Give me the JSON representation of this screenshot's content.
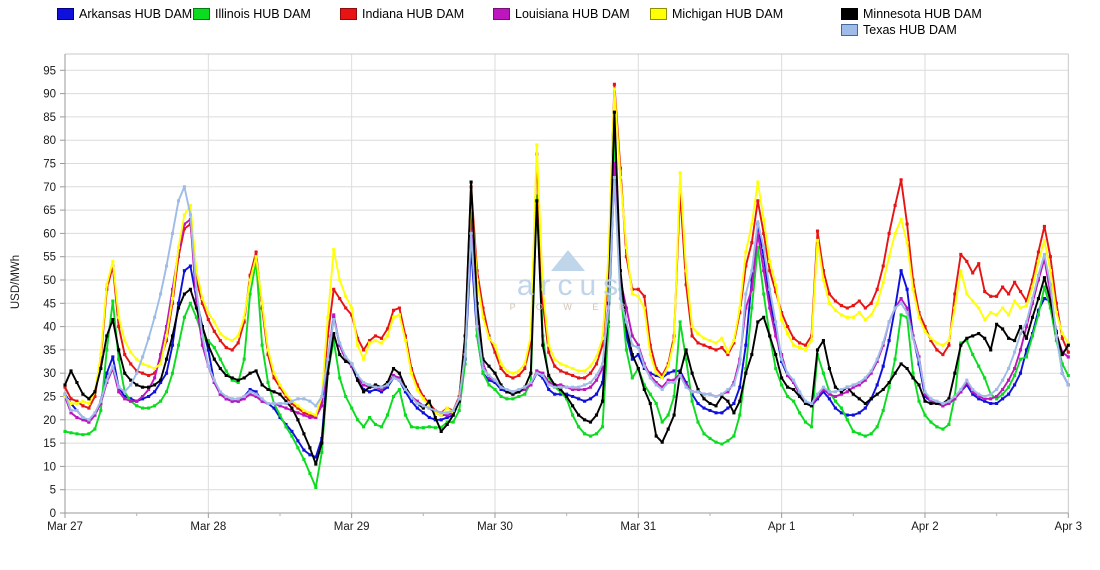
{
  "chart_data": {
    "type": "line",
    "title": "",
    "ylabel": "USD/MWh",
    "ylim": [
      0,
      95
    ],
    "ytick_step": 5,
    "grid": true,
    "legend_position": "top",
    "x_mode": "hourly",
    "points_per_day": 24,
    "day_labels": [
      "Mar 27",
      "Mar 28",
      "Mar 29",
      "Mar 30",
      "Mar 31",
      "Apr 1",
      "Apr 2",
      "Apr 3"
    ],
    "watermark": {
      "text": "arcus",
      "subtext": "P O W E R"
    },
    "series": [
      {
        "name": "Arkansas HUB DAM",
        "color": "#1010dd",
        "border": "#000080",
        "values": [
          25.5,
          23.5,
          22,
          20.5,
          19.5,
          21,
          24,
          30,
          33.5,
          27,
          25,
          24.5,
          24,
          24.5,
          25,
          26,
          28,
          30,
          36,
          45,
          52,
          53,
          46,
          40,
          35,
          28,
          25.5,
          24.5,
          24,
          24,
          25,
          26.5,
          26,
          24,
          23.5,
          22.5,
          20.5,
          19,
          17.5,
          15.5,
          13.5,
          12.5,
          12,
          16,
          32,
          42,
          36,
          33,
          31.5,
          28.5,
          26.5,
          26,
          26.5,
          26,
          27,
          29,
          28.5,
          26,
          24,
          22.5,
          21.5,
          20.5,
          20,
          20,
          20.5,
          21,
          24,
          33,
          57,
          38,
          30,
          28.5,
          28,
          26.5,
          26,
          25.5,
          26,
          26.5,
          27.5,
          30,
          29,
          26.5,
          25.5,
          25.5,
          25.5,
          25,
          24.5,
          24,
          24.5,
          25.5,
          28,
          41,
          73,
          48,
          38,
          33,
          34,
          31,
          30,
          29.5,
          29,
          30,
          30.5,
          30.5,
          28,
          25.5,
          23.5,
          22.5,
          22,
          21.5,
          21.5,
          22.5,
          23.5,
          27,
          36,
          50,
          62,
          55,
          46,
          39,
          32.5,
          29.5,
          28,
          25.5,
          23.5,
          23,
          24.5,
          26,
          24.5,
          22.5,
          21.5,
          21,
          21,
          21.5,
          22.5,
          24.5,
          27.5,
          31.5,
          37,
          44,
          52,
          48,
          38,
          32,
          25,
          24,
          23.5,
          23,
          23.5,
          24.5,
          26,
          27.5,
          25.5,
          24.5,
          24,
          23.5,
          23.5,
          24.5,
          25.5,
          27.5,
          30,
          35,
          38.5,
          43.5,
          46,
          45.5,
          39,
          30,
          27.5
        ]
      },
      {
        "name": "Illinois HUB DAM",
        "color": "#0bdc20",
        "border": "#007f0e",
        "values": [
          17.5,
          17.2,
          17,
          16.8,
          17,
          18,
          22,
          35,
          45.5,
          33,
          26,
          24,
          23,
          22.5,
          22.5,
          23,
          24,
          26,
          30,
          36,
          42,
          45,
          42,
          38,
          37,
          35.5,
          33,
          30.5,
          28.5,
          28,
          33,
          47,
          54,
          36,
          28,
          23.5,
          21,
          18.5,
          16.5,
          14,
          11.5,
          8.5,
          5.5,
          13,
          30,
          37,
          29,
          25,
          22.5,
          20,
          18.5,
          20.5,
          19,
          18.5,
          21,
          25,
          26.5,
          21,
          18.5,
          18.3,
          18.3,
          18.5,
          18.3,
          18.4,
          19.5,
          19.5,
          22,
          32,
          66,
          38,
          30,
          27.5,
          26.5,
          25,
          24.5,
          24.5,
          25,
          25.5,
          28,
          68,
          38,
          29,
          27,
          26,
          24.5,
          21,
          18.5,
          17,
          16.5,
          17,
          18.5,
          40,
          82,
          48,
          35,
          29,
          31,
          27.5,
          25.5,
          23.5,
          19.5,
          21,
          25,
          41,
          33,
          24,
          19.5,
          17,
          16,
          15.2,
          14.8,
          15.5,
          16.5,
          21,
          31,
          44,
          57,
          47,
          38,
          31,
          27.5,
          25,
          24,
          21.5,
          19.5,
          18.5,
          34,
          30,
          26,
          24,
          22.5,
          20,
          17.5,
          17,
          16.5,
          17,
          18.5,
          22,
          27,
          33,
          42.5,
          42,
          30,
          24,
          21,
          19.5,
          18.5,
          18,
          19,
          25,
          36.5,
          37,
          34,
          31.5,
          29,
          25.5,
          24.5,
          25.5,
          27,
          29.5,
          33,
          33.5,
          38,
          42.5,
          48.5,
          44,
          37,
          32,
          29.5
        ]
      },
      {
        "name": "Indiana HUB DAM",
        "color": "#e81313",
        "border": "#8f0a0a",
        "values": [
          27,
          24.5,
          24,
          23,
          22.5,
          25,
          33,
          48,
          53,
          40,
          34,
          32,
          30.5,
          30,
          29.5,
          30,
          33,
          37,
          45,
          55,
          61,
          62,
          50,
          45,
          41.5,
          39,
          37,
          35.5,
          35,
          36.5,
          41,
          51,
          56,
          44,
          34,
          29,
          27,
          25,
          23.5,
          22.5,
          21.5,
          21,
          20.5,
          24,
          38,
          48,
          46,
          44,
          42.5,
          37.5,
          35,
          37,
          38,
          37.5,
          39.5,
          43.5,
          44,
          38,
          31,
          27.5,
          25,
          23.5,
          22,
          21.5,
          22.5,
          22,
          25,
          38,
          70,
          52,
          44,
          38,
          34.5,
          31,
          29.5,
          29,
          29.5,
          31,
          36.5,
          77,
          45,
          34.5,
          31.5,
          30.5,
          30,
          29.5,
          29,
          29,
          30,
          32,
          36,
          53,
          92,
          74,
          55,
          48,
          48,
          46.5,
          36,
          31,
          29.5,
          32,
          38,
          69,
          49,
          38,
          36.5,
          36,
          35.5,
          35,
          35.5,
          34,
          36.5,
          43,
          53,
          58,
          67,
          60,
          52,
          47.5,
          43,
          40,
          37.5,
          36.5,
          36,
          38,
          60.5,
          52,
          47,
          45.5,
          44.5,
          44,
          44.5,
          45.5,
          44,
          45,
          48,
          53,
          60,
          66,
          71.5,
          62,
          50,
          43,
          40,
          37,
          35,
          34,
          36,
          47,
          55.5,
          54,
          51.5,
          53.5,
          47.5,
          46.5,
          46.5,
          48.5,
          47,
          49.5,
          47.5,
          45.5,
          50,
          56,
          61.5,
          55,
          45,
          37.5,
          34.5
        ]
      },
      {
        "name": "Louisiana HUB DAM",
        "color": "#be16be",
        "border": "#770e77",
        "values": [
          25,
          21.5,
          20.5,
          20,
          19.5,
          21,
          23.5,
          28,
          31,
          26,
          24.5,
          24,
          24,
          25,
          26.5,
          29,
          34,
          40,
          48,
          56,
          62,
          63,
          45,
          36,
          31.5,
          28,
          25.5,
          24.5,
          24,
          24,
          24.5,
          25.5,
          25,
          24,
          23.5,
          23.5,
          23,
          22.5,
          22,
          21.5,
          21,
          20.5,
          20.5,
          23,
          33,
          42.5,
          36,
          33,
          31.5,
          29,
          27.5,
          27,
          27,
          26.5,
          27.5,
          29.5,
          29,
          27,
          25,
          24,
          23,
          22.5,
          21.5,
          21,
          21,
          21.5,
          24,
          34,
          65,
          42,
          32,
          29,
          28.5,
          27,
          26.5,
          26,
          26,
          26.5,
          27.5,
          30.5,
          30,
          28,
          27.5,
          27.5,
          27,
          26.5,
          26.5,
          26.5,
          27,
          28.5,
          31,
          45,
          75,
          50,
          44,
          38,
          36,
          32,
          29.5,
          28,
          27,
          28.5,
          28.5,
          30,
          27.5,
          26,
          26,
          25.5,
          25.5,
          25,
          25.5,
          26,
          28,
          33,
          44,
          48,
          60,
          52,
          44,
          38,
          34,
          29.5,
          28,
          25.5,
          23.5,
          23,
          25,
          26.5,
          25.5,
          25,
          25.5,
          26,
          27,
          27.5,
          28.5,
          30,
          32.5,
          36,
          41,
          44,
          46,
          44,
          38,
          33.5,
          25.5,
          24,
          23.5,
          23,
          23.5,
          24.5,
          26,
          28,
          26,
          25,
          24.5,
          24.5,
          25,
          26.5,
          28.5,
          31,
          35,
          40,
          45,
          50,
          54.5,
          47,
          38.5,
          34.5,
          33.5
        ]
      },
      {
        "name": "Michigan HUB DAM",
        "color": "#ffff05",
        "border": "#8f8f00",
        "values": [
          25,
          23.5,
          23.5,
          24,
          23.5,
          26,
          34,
          49,
          54,
          42,
          37,
          34.5,
          33,
          32,
          31.5,
          31,
          32,
          38,
          46,
          57,
          64,
          66,
          52,
          46,
          43,
          41,
          38.5,
          37.5,
          37,
          38,
          42,
          50,
          55,
          45,
          35,
          30,
          27.5,
          25.5,
          24,
          23,
          22,
          21.5,
          21,
          25,
          42,
          56.5,
          50,
          46.5,
          44,
          36,
          33,
          36.5,
          37,
          36.5,
          38,
          42,
          42.5,
          37,
          30,
          26.5,
          24.5,
          23,
          21.5,
          21,
          22.5,
          21.5,
          24.5,
          37,
          68.5,
          50,
          42,
          37.5,
          36,
          32,
          30.5,
          30,
          30.5,
          32,
          38,
          79,
          48,
          36,
          33,
          32,
          31.5,
          31,
          30.5,
          30.5,
          31.5,
          33.5,
          37.5,
          55,
          91,
          72,
          57,
          47,
          46.5,
          44,
          34,
          30,
          29,
          31.5,
          37,
          73,
          52,
          40,
          38.5,
          37.5,
          37,
          36.5,
          37.5,
          34.5,
          37,
          44,
          56,
          62,
          71,
          63,
          54,
          49,
          41.5,
          38.5,
          36,
          35.5,
          35,
          37,
          58.5,
          50,
          45,
          43.5,
          42.5,
          42,
          42,
          43,
          41.5,
          42.5,
          45,
          49.5,
          55,
          60,
          63,
          58,
          48,
          42,
          39,
          37.5,
          36.5,
          36,
          37,
          44,
          52,
          47,
          45.5,
          44,
          41.5,
          43,
          42.5,
          44,
          42.5,
          45.5,
          44,
          44.5,
          48.5,
          54,
          58.5,
          52,
          43,
          38.5,
          36.5
        ]
      },
      {
        "name": "Minnesota HUB DAM",
        "color": "#000000",
        "border": "#000000",
        "values": [
          27.5,
          30.5,
          28,
          25.5,
          24.5,
          26,
          31,
          38,
          41.5,
          35,
          30,
          28.5,
          27.5,
          27,
          27,
          27.5,
          28.5,
          33,
          38,
          44,
          47,
          48,
          44,
          40,
          36,
          33,
          31,
          29.5,
          29,
          28.5,
          29,
          30,
          30.5,
          27.5,
          26.5,
          26,
          25.5,
          24,
          22.5,
          20,
          17,
          14,
          10.5,
          15,
          30,
          38.5,
          34,
          32.5,
          32,
          28.5,
          26,
          27,
          27.5,
          27,
          28,
          31,
          30,
          27,
          25,
          23.5,
          22.5,
          24,
          20.5,
          17.5,
          19,
          21,
          24,
          38,
          71,
          45,
          33,
          31.5,
          30,
          27.5,
          26,
          25.5,
          26,
          27,
          30,
          67,
          36,
          29.5,
          27.5,
          26.5,
          25,
          23,
          21,
          20,
          19.5,
          21,
          24,
          45,
          86,
          52,
          40,
          34,
          31,
          26.5,
          23.5,
          16.5,
          15.2,
          18,
          21,
          30,
          35,
          30,
          26.5,
          24.5,
          23.5,
          23,
          25,
          24,
          21.5,
          24,
          30,
          34,
          41,
          42,
          38,
          34,
          29,
          27,
          26.5,
          25,
          23.5,
          23,
          35,
          37,
          31,
          27,
          26,
          27,
          25.5,
          24.5,
          23.5,
          24.5,
          25.5,
          26.5,
          28,
          30,
          32,
          31,
          29,
          27.5,
          24,
          23.5,
          23.5,
          23.5,
          24.5,
          30,
          36,
          37.5,
          38,
          38.5,
          37.5,
          35,
          40.5,
          39.5,
          37.5,
          37,
          40,
          37.5,
          42,
          46,
          50.5,
          45.5,
          38.5,
          34,
          36
        ]
      },
      {
        "name": "Texas HUB DAM",
        "color": "#9fbce8",
        "border": "#44699d",
        "values": [
          25.5,
          22,
          22,
          20.5,
          20,
          21.5,
          24,
          28.5,
          31.5,
          27,
          26,
          27.5,
          30,
          33.5,
          37.5,
          42,
          47,
          53,
          60,
          67,
          70,
          64,
          48,
          38,
          31.5,
          28.5,
          26,
          25,
          24.5,
          24.5,
          25,
          26,
          25.5,
          24.5,
          23.5,
          23.5,
          23.5,
          23.5,
          24,
          24.5,
          24.5,
          24,
          23,
          25,
          33,
          41.5,
          36.5,
          33.5,
          32,
          29.5,
          28,
          27.5,
          27,
          27,
          27.5,
          29,
          28.5,
          26.5,
          25,
          23.5,
          23,
          22.5,
          22,
          21.5,
          21.5,
          22,
          24.5,
          34,
          60,
          40,
          31,
          29.5,
          28.5,
          27,
          26.5,
          26,
          26.5,
          27,
          28,
          30,
          29.5,
          27.5,
          27,
          27,
          27,
          27,
          27,
          27.5,
          28,
          29.5,
          32,
          44,
          72,
          46,
          41,
          36,
          35.5,
          31.5,
          29,
          27.5,
          26.5,
          28,
          28,
          29.5,
          27,
          26,
          26,
          25.5,
          25.5,
          25,
          25.5,
          26.5,
          27.5,
          32,
          47,
          52,
          62.5,
          57,
          48,
          41,
          33,
          30,
          28.5,
          26,
          24,
          23.5,
          25.5,
          27,
          26,
          26,
          26.5,
          27,
          27.5,
          28,
          29,
          30.5,
          33,
          36.5,
          41,
          44,
          45,
          43,
          37.5,
          33,
          26,
          24.5,
          24,
          23.5,
          24,
          25,
          26.5,
          28.5,
          26.5,
          25.5,
          25,
          25.5,
          26.5,
          28.5,
          31,
          34.5,
          38.5,
          41,
          46,
          51,
          55.5,
          49,
          38,
          30,
          27.5
        ]
      }
    ]
  }
}
